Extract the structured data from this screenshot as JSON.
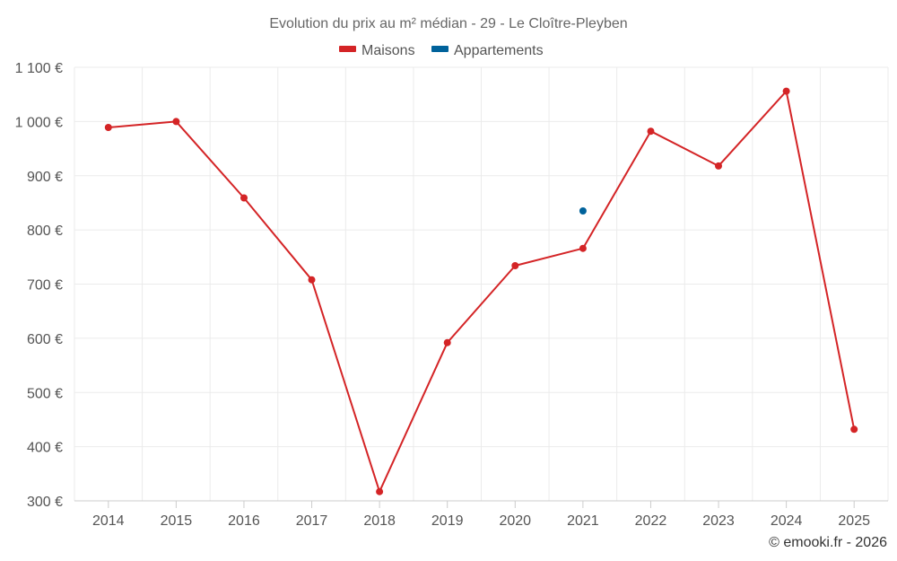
{
  "chart_data": {
    "type": "line",
    "title": "Evolution du prix au m² médian - 29 - Le Cloître-Pleyben",
    "categories": [
      "2014",
      "2015",
      "2016",
      "2017",
      "2018",
      "2019",
      "2020",
      "2021",
      "2022",
      "2023",
      "2024",
      "2025"
    ],
    "series": [
      {
        "name": "Maisons",
        "color": "#d42426",
        "values": [
          989,
          1000,
          859,
          708,
          317,
          592,
          734,
          766,
          982,
          918,
          1056,
          432
        ]
      },
      {
        "name": "Appartements",
        "color": "#00629b",
        "values": [
          null,
          null,
          null,
          null,
          null,
          null,
          null,
          835,
          null,
          null,
          null,
          null
        ]
      }
    ],
    "ylim": [
      300,
      1100
    ],
    "y_ticks": [
      300,
      400,
      500,
      600,
      700,
      800,
      900,
      1000,
      1100
    ],
    "y_tick_labels": [
      "300 €",
      "400 €",
      "500 €",
      "600 €",
      "700 €",
      "800 €",
      "900 €",
      "1 000 €",
      "1 100 €"
    ],
    "xlabel": "",
    "ylabel": "",
    "legend_position": "top-center",
    "grid": true
  },
  "credit": "© emooki.fr - 2026"
}
